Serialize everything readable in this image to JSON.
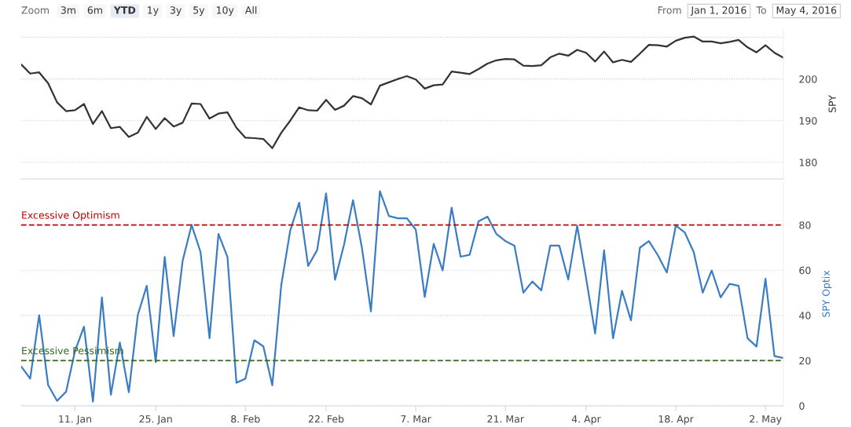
{
  "chart_data": [
    {
      "type": "line",
      "ylabel": "SPY",
      "tick_labels": "y",
      "grid": "y",
      "ylim": [
        176,
        212
      ],
      "yticks": [
        180,
        190,
        200,
        {
          "value": 210,
          "label": null
        }
      ],
      "annotations": [
        "Zoom",
        "3m",
        "6m",
        "YTD",
        "1y",
        "3y",
        "5y",
        "10y",
        "All",
        "From",
        "Jan 1, 2016",
        "To",
        "May 4, 2016"
      ],
      "categories": [
        null,
        null,
        null,
        null,
        null,
        null,
        null,
        null,
        null,
        null,
        null,
        null,
        null,
        null,
        null,
        null,
        null,
        null,
        null,
        null,
        null,
        null,
        null,
        null,
        null,
        null,
        null,
        null,
        null,
        null,
        null,
        null,
        null,
        null,
        null,
        null,
        null,
        null,
        null,
        null,
        null,
        null,
        null,
        null,
        null,
        null,
        null,
        null,
        null,
        null,
        null,
        null,
        null,
        null,
        null,
        null,
        null,
        null,
        null,
        null,
        null,
        null,
        null,
        null,
        null,
        null,
        null,
        null,
        null,
        null,
        null,
        null,
        null,
        null,
        null,
        null,
        null,
        null,
        null,
        null,
        null,
        null,
        null,
        null,
        null,
        null
      ],
      "series": [
        {
          "color": "#333333",
          "values": [
            203.5,
            201.3,
            201.6,
            199.0,
            194.4,
            192.3,
            192.5,
            194.0,
            189.2,
            192.3,
            188.2,
            188.5,
            186.1,
            187.1,
            190.9,
            188.0,
            190.6,
            188.6,
            189.5,
            194.1,
            194.0,
            190.5,
            191.7,
            192.0,
            188.3,
            185.9,
            185.8,
            185.6,
            183.4,
            187.1,
            190.0,
            193.2,
            192.5,
            192.4,
            195.0,
            192.6,
            193.6,
            195.9,
            195.4,
            193.9,
            198.4,
            199.2,
            200.0,
            200.7,
            199.9,
            197.7,
            198.5,
            198.7,
            201.8,
            201.5,
            201.2,
            202.4,
            203.7,
            204.5,
            204.8,
            204.7,
            203.2,
            203.1,
            203.3,
            205.2,
            206.1,
            205.6,
            207.0,
            206.3,
            204.2,
            206.6,
            204.0,
            204.6,
            204.1,
            206.1,
            208.2,
            208.1,
            207.8,
            209.2,
            209.9,
            210.2,
            209.0,
            209.0,
            208.6,
            208.9,
            209.4,
            207.6,
            206.4,
            208.1,
            206.3,
            205.1
          ]
        }
      ]
    },
    {
      "type": "line",
      "ylabel": "SPY Optix",
      "grid": "y",
      "ylim": [
        0,
        99
      ],
      "yticks": [
        0,
        20,
        40,
        60,
        80
      ],
      "categories": [
        null,
        null,
        null,
        null,
        null,
        null,
        "11. Jan",
        null,
        null,
        null,
        null,
        null,
        null,
        null,
        null,
        "25. Jan",
        null,
        null,
        null,
        null,
        null,
        null,
        null,
        null,
        null,
        "8. Feb",
        null,
        null,
        null,
        null,
        null,
        null,
        null,
        null,
        "22. Feb",
        null,
        null,
        null,
        null,
        null,
        null,
        null,
        null,
        null,
        "7. Mar",
        null,
        null,
        null,
        null,
        null,
        null,
        null,
        null,
        null,
        "21. Mar",
        null,
        null,
        null,
        null,
        null,
        null,
        null,
        null,
        "4. Apr",
        null,
        null,
        null,
        null,
        null,
        null,
        null,
        null,
        null,
        "18. Apr",
        null,
        null,
        null,
        null,
        null,
        null,
        null,
        null,
        null,
        "2. May",
        null,
        null
      ],
      "ref_lines": [
        {
          "axis": "y",
          "value": 80,
          "label": "Excessive Optimism",
          "color": "#c00000",
          "line_style": "dashed"
        },
        {
          "axis": "y",
          "value": 20,
          "label": "Excessive Pessimism",
          "color": "#2e6b1e",
          "line_style": "dashed"
        }
      ],
      "series": [
        {
          "color": "#3a7dc4",
          "values": [
            17.4,
            12.0,
            40.1,
            9.2,
            2.2,
            6.2,
            24.3,
            35.0,
            1.9,
            48.0,
            4.9,
            28.0,
            6.0,
            40.2,
            53.1,
            19.3,
            65.9,
            30.9,
            64.1,
            80.0,
            68.0,
            29.9,
            76.0,
            65.9,
            10.2,
            12.0,
            29.0,
            26.3,
            9.1,
            53.4,
            77.6,
            89.9,
            61.9,
            68.9,
            94.0,
            55.8,
            71.3,
            91.0,
            69.8,
            41.8,
            95.0,
            84.0,
            83.0,
            83.0,
            78.0,
            48.2,
            71.7,
            59.9,
            87.7,
            66.0,
            66.8,
            81.6,
            83.7,
            76.0,
            72.9,
            70.9,
            50.1,
            55.0,
            51.1,
            70.9,
            70.9,
            55.9,
            79.7,
            56.4,
            32.0,
            68.8,
            29.9,
            50.9,
            37.8,
            70.0,
            72.9,
            66.6,
            59.0,
            79.8,
            76.7,
            68.0,
            50.1,
            59.9,
            48.0,
            54.0,
            53.1,
            29.9,
            26.2,
            56.2,
            22.0,
            21.1
          ]
        }
      ]
    }
  ]
}
